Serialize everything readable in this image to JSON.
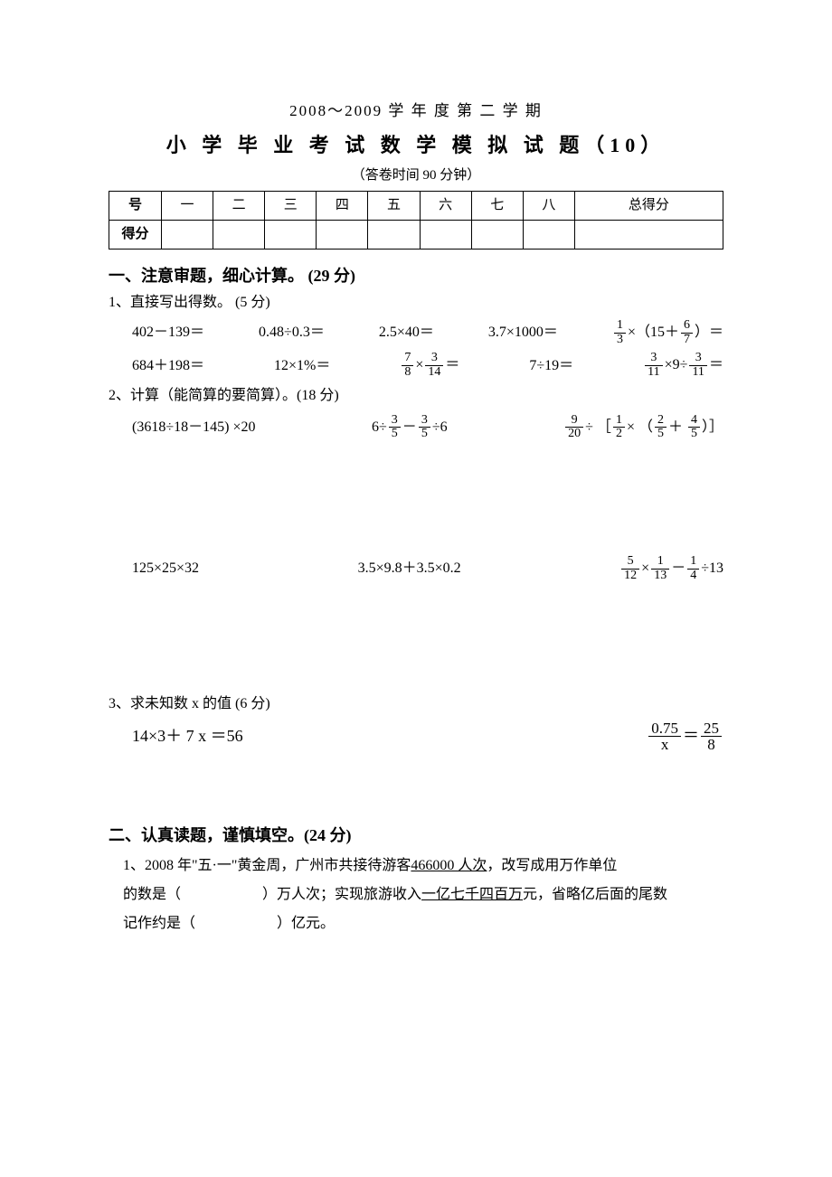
{
  "header": {
    "line1": "2008～2009 学 年 度 第 二 学 期",
    "line2": "小 学 毕 业 考 试 数 学 模 拟 试 题（10）",
    "line3": "（答卷时间 90 分钟）"
  },
  "scoreTable": {
    "rowLabel1": "号",
    "rowLabel2": "得分",
    "cols": [
      "一",
      "二",
      "三",
      "四",
      "五",
      "六",
      "七",
      "八",
      "总得分"
    ]
  },
  "section1": {
    "title": "一、注意审题，细心计算。 (29 分)",
    "q1": {
      "label": "1、直接写出得数。 (5 分)",
      "r1c1": "402－139＝",
      "r1c2": "0.48÷0.3＝",
      "r1c3": "2.5×40＝",
      "r1c4": "3.7×1000＝",
      "r1c5_a": "×（15＋",
      "r1c5_b": "）＝",
      "r1c5_f1n": "1",
      "r1c5_f1d": "3",
      "r1c5_f2n": "6",
      "r1c5_f2d": "7",
      "r2c1": "684＋198＝",
      "r2c2": "12×1%＝",
      "r2c3_f1n": "7",
      "r2c3_f1d": "8",
      "r2c3_f2n": "3",
      "r2c3_f2d": "14",
      "r2c3_mid": "×",
      "r2c3_end": "＝",
      "r2c4": "7÷19＝",
      "r2c5_f1n": "3",
      "r2c5_f1d": "11",
      "r2c5_f2n": "3",
      "r2c5_f2d": "11",
      "r2c5_a": "×9÷",
      "r2c5_end": "＝"
    },
    "q2": {
      "label": "2、计算（能简算的要简算）。(18 分)",
      "a": "(3618÷18－145) ×20",
      "b_pre": "6÷",
      "b_mid": "－",
      "b_post": "÷6",
      "b_f1n": "3",
      "b_f1d": "5",
      "b_f2n": "3",
      "b_f2d": "5",
      "c_pre": "",
      "c_div": "÷ ［",
      "c_mul": "× （",
      "c_plus": "＋ ",
      "c_end": "）］",
      "c_f1n": "9",
      "c_f1d": "20",
      "c_f2n": "1",
      "c_f2d": "2",
      "c_f3n": "2",
      "c_f3d": "5",
      "c_f4n": "4",
      "c_f4d": "5",
      "d": "125×25×32",
      "e": "3.5×9.8＋3.5×0.2",
      "f_mul": "×",
      "f_minus": "－",
      "f_div": "÷13",
      "f_f1n": "5",
      "f_f1d": "12",
      "f_f2n": "1",
      "f_f2d": "13",
      "f_f3n": "1",
      "f_f3d": "4"
    },
    "q3": {
      "label": "3、求未知数 x 的值 (6 分)",
      "a": "14×3＋ 7 x ＝56",
      "b_l_n": "0.75",
      "b_l_d": "x",
      "b_eq": "＝",
      "b_r_n": "25",
      "b_r_d": "8"
    }
  },
  "section2": {
    "title": "二、认真读题，谨慎填空。(24 分)",
    "q1_a": "1、2008 年\"五·一\"黄金周，广州市共接待游客",
    "q1_num": "466000 人次",
    "q1_b": "，改写成用万作单位",
    "q1_c": "的数是（",
    "q1_d": "）万人次；实现旅游收入",
    "q1_ul2": "一亿七千四百万",
    "q1_e": "元，省略亿后面的尾数",
    "q1_f": "记作约是（",
    "q1_g": "）亿元。"
  }
}
